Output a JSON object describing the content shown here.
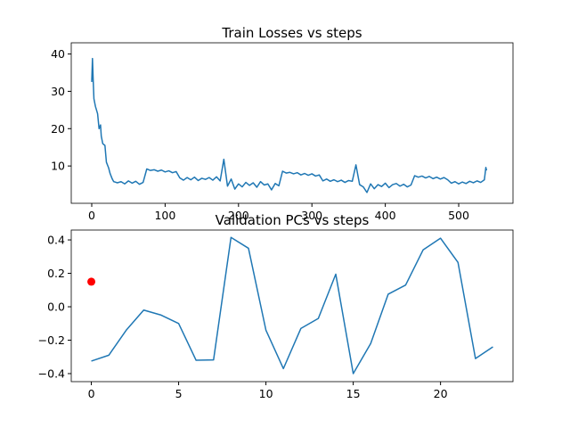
{
  "chart_data": [
    {
      "type": "line",
      "title": "Train Losses vs steps",
      "x": [
        0,
        1,
        2,
        3,
        5,
        8,
        10,
        12,
        13,
        15,
        18,
        20,
        23,
        25,
        28,
        30,
        35,
        40,
        45,
        50,
        55,
        60,
        65,
        70,
        75,
        80,
        85,
        90,
        95,
        100,
        105,
        110,
        115,
        120,
        125,
        130,
        135,
        140,
        145,
        150,
        155,
        160,
        165,
        170,
        175,
        180,
        185,
        190,
        195,
        200,
        205,
        210,
        215,
        220,
        225,
        230,
        235,
        240,
        245,
        250,
        255,
        260,
        265,
        270,
        275,
        280,
        285,
        290,
        295,
        300,
        305,
        310,
        315,
        320,
        325,
        330,
        335,
        340,
        345,
        350,
        355,
        360,
        365,
        370,
        375,
        380,
        385,
        390,
        395,
        400,
        405,
        410,
        415,
        420,
        425,
        430,
        435,
        440,
        445,
        450,
        455,
        460,
        465,
        470,
        475,
        480,
        485,
        490,
        495,
        500,
        505,
        510,
        515,
        520,
        525,
        530,
        535,
        537,
        538
      ],
      "series": [
        {
          "color": "#1f77b4",
          "values": [
            32.5,
            38.8,
            33,
            28,
            26,
            24,
            20,
            21,
            18,
            16,
            15.5,
            11,
            9.5,
            8,
            6.5,
            5.8,
            5.5,
            5.8,
            5.2,
            6.0,
            5.4,
            5.9,
            5.1,
            5.6,
            9.2,
            8.8,
            9.0,
            8.6,
            8.9,
            8.4,
            8.7,
            8.2,
            8.5,
            6.8,
            6.2,
            6.9,
            6.3,
            7.0,
            6.1,
            6.7,
            6.4,
            6.9,
            6.2,
            7.1,
            6.0,
            11.8,
            4.6,
            6.5,
            3.8,
            5.2,
            4.4,
            5.6,
            4.8,
            5.5,
            4.3,
            5.8,
            4.9,
            5.2,
            3.6,
            5.3,
            4.7,
            8.6,
            8.1,
            8.3,
            7.9,
            8.2,
            7.6,
            8.0,
            7.5,
            7.9,
            7.3,
            7.6,
            6.0,
            6.5,
            5.9,
            6.3,
            5.8,
            6.2,
            5.6,
            6.1,
            5.9,
            10.3,
            5.0,
            4.4,
            2.9,
            5.2,
            3.9,
            5.0,
            4.5,
            5.4,
            4.2,
            5.0,
            5.3,
            4.6,
            5.1,
            4.4,
            4.9,
            7.4,
            7.0,
            7.3,
            6.8,
            7.2,
            6.6,
            7.0,
            6.5,
            6.9,
            6.3,
            5.4,
            5.8,
            5.2,
            5.7,
            5.3,
            5.9,
            5.5,
            6.0,
            5.6,
            6.3,
            9.6,
            8.8
          ]
        }
      ],
      "xlim": [
        -27.9,
        574
      ],
      "xticks": [
        0,
        100,
        200,
        300,
        400,
        500
      ],
      "ylim": [
        0,
        43
      ],
      "yticks": [
        10,
        20,
        30,
        40
      ]
    },
    {
      "type": "line",
      "title": "Validation PCs vs steps",
      "x": [
        0,
        1,
        2,
        3,
        4,
        5,
        6,
        7,
        8,
        9,
        10,
        11,
        12,
        13,
        14,
        15,
        16,
        17,
        18,
        19,
        20,
        21,
        22,
        23
      ],
      "series": [
        {
          "color": "#1f77b4",
          "values": [
            -0.325,
            -0.29,
            -0.14,
            -0.02,
            -0.05,
            -0.1,
            -0.32,
            -0.318,
            0.415,
            0.35,
            -0.14,
            -0.37,
            -0.13,
            -0.07,
            0.195,
            -0.4,
            -0.22,
            0.075,
            0.13,
            0.34,
            0.41,
            0.265,
            -0.31,
            -0.24
          ]
        },
        {
          "type": "scatter",
          "color": "#ff0000",
          "x": [
            0
          ],
          "values": [
            0.15
          ]
        }
      ],
      "xlim": [
        -1.15,
        24.15
      ],
      "xticks": [
        0,
        5,
        10,
        15,
        20
      ],
      "ylim": [
        -0.448,
        0.459
      ],
      "yticks": [
        {
          "value": -0.4,
          "label": "−0.4"
        },
        {
          "value": -0.2,
          "label": "−0.2"
        },
        {
          "value": 0,
          "label": "0.0"
        },
        {
          "value": 0.2,
          "label": "0.2"
        },
        {
          "value": 0.4,
          "label": "0.4"
        }
      ]
    }
  ]
}
